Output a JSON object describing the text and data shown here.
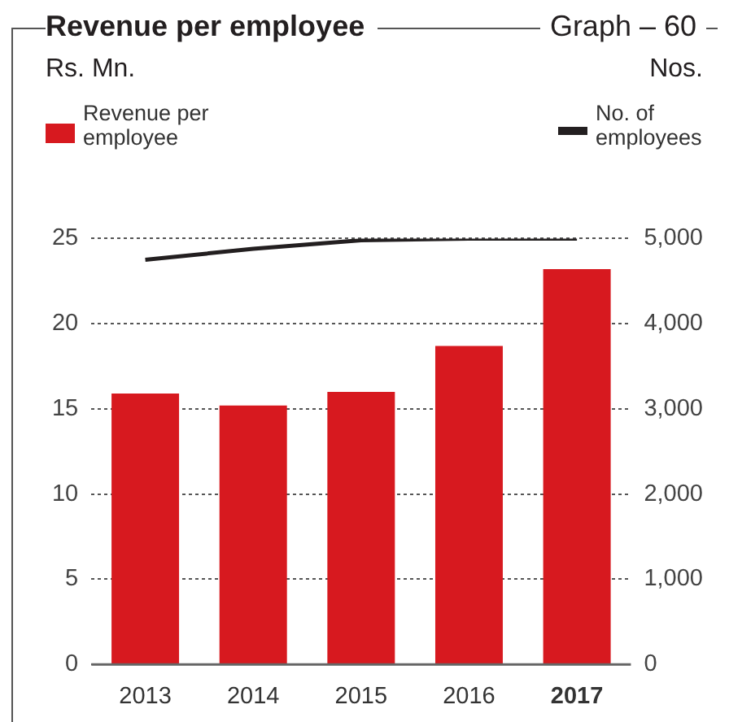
{
  "chart_data": {
    "type": "bar",
    "title": "Revenue per employee",
    "annotations": [
      "Graph – 60",
      "Rs. Mn.",
      "Nos."
    ],
    "categories": [
      "2013",
      "2014",
      "2015",
      "2016",
      "2017"
    ],
    "series": [
      {
        "name": "Revenue per employee",
        "type": "bar",
        "color": "#d7191f",
        "values": [
          15.9,
          15.2,
          16.0,
          18.7,
          23.2
        ]
      },
      {
        "name": "No. of employees",
        "type": "line",
        "axis": "y2",
        "color": "#231f20",
        "values": [
          4750,
          4880,
          4980,
          5000,
          5000
        ]
      }
    ],
    "ylim": [
      0,
      25
    ],
    "yticks": [
      0,
      5,
      10,
      15,
      20,
      25
    ],
    "y2lim": [
      0,
      5000
    ],
    "y2ticks": [
      {
        "value": 0,
        "label": "0"
      },
      {
        "value": 1000,
        "label": "1,000"
      },
      {
        "value": 2000,
        "label": "2,000"
      },
      {
        "value": 3000,
        "label": "3,000"
      },
      {
        "value": 4000,
        "label": "4,000"
      },
      {
        "value": 5000,
        "label": "5,000"
      }
    ],
    "grid": "y",
    "legend": "top",
    "marker": "none"
  }
}
